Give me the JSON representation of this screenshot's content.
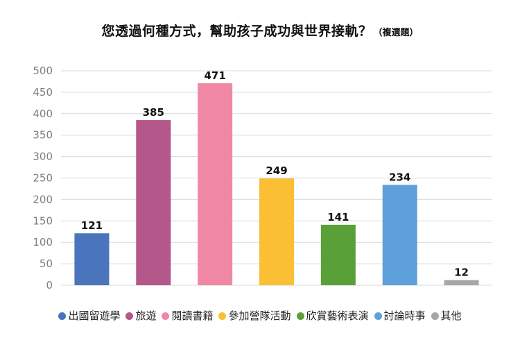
{
  "chart": {
    "title": "您透過何種方式，幫助孩子成功與世界接軌？",
    "subtitle": "（複選題）"
  },
  "chart_data": {
    "type": "bar",
    "title": "您透過何種方式，幫助孩子成功與世界接軌？",
    "subtitle": "（複選題）",
    "categories": [
      "出國留遊學",
      "旅遊",
      "閱讀書籍",
      "參加營隊活動",
      "欣賞藝術表演",
      "討論時事",
      "其他"
    ],
    "values": [
      121,
      385,
      471,
      249,
      141,
      234,
      12
    ],
    "colors": [
      "#4a74bb",
      "#b4578a",
      "#f088a5",
      "#fbbf35",
      "#5aa039",
      "#5ea0d9",
      "#a6a6a6"
    ],
    "data_labels": [
      "121",
      "385",
      "471",
      "249",
      "141",
      "234",
      "12"
    ],
    "ylim": [
      0,
      500
    ],
    "y_ticks": [
      0,
      50,
      100,
      150,
      200,
      250,
      300,
      350,
      400,
      450,
      500
    ],
    "y_tick_labels": [
      "0",
      "50",
      "100",
      "150",
      "200",
      "250",
      "300",
      "350",
      "400",
      "450",
      "500"
    ],
    "xlabel": "",
    "ylabel": "",
    "grid": true,
    "legend": "bottom"
  }
}
